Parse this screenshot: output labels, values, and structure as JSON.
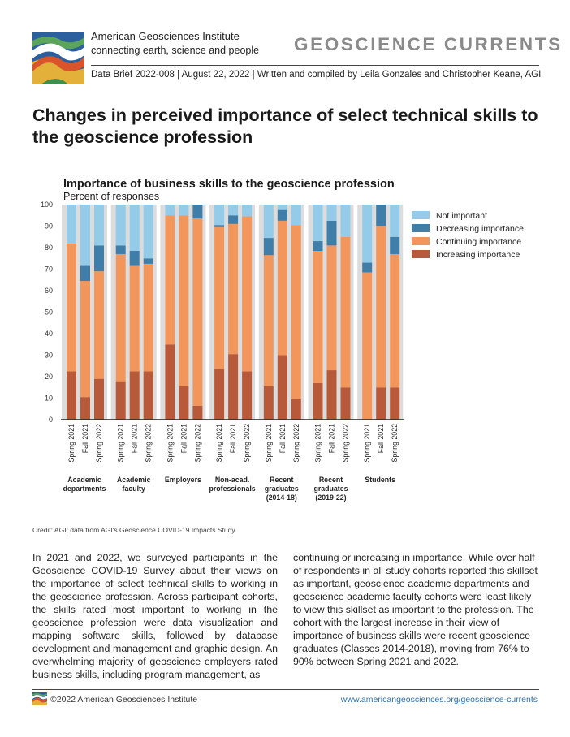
{
  "header": {
    "org_name": "American Geosciences Institute",
    "tagline": "connecting earth, science and people",
    "series_title": "GEOSCIENCE CURRENTS",
    "brief_line": "Data Brief 2022-008 | August 22, 2022 | Written and compiled by Leila Gonzales and Christopher Keane, AGI"
  },
  "page_title": "Changes in perceived importance of select technical skills to the geoscience profession",
  "colors": {
    "not_important": "#93cbe9",
    "decreasing": "#3f7ea8",
    "continuing": "#f3965c",
    "increasing": "#b8593a",
    "panel": "#dcdcdc"
  },
  "chart_data": {
    "type": "bar",
    "stacked": true,
    "title": "Importance of business skills to the geoscience profession",
    "subtitle": "Percent of responses",
    "ylim": [
      0,
      100
    ],
    "yticks": [
      0,
      10,
      20,
      30,
      40,
      50,
      60,
      70,
      80,
      90,
      100
    ],
    "legend": [
      "Not important",
      "Decreasing importance",
      "Continuing importance",
      "Increasing importance"
    ],
    "legend_position": "top-right",
    "groups": [
      {
        "label": [
          "Academic",
          "departments"
        ],
        "bars": [
          {
            "x": "Spring 2021",
            "increasing": 22.5,
            "continuing": 59.5,
            "decreasing": 0,
            "not_important": 18
          },
          {
            "x": "Fall 2021",
            "increasing": 10.5,
            "continuing": 54,
            "decreasing": 7,
            "not_important": 28.5
          },
          {
            "x": "Spring 2022",
            "increasing": 19,
            "continuing": 50,
            "decreasing": 12,
            "not_important": 19
          }
        ]
      },
      {
        "label": [
          "Academic",
          "faculty"
        ],
        "bars": [
          {
            "x": "Spring 2021",
            "increasing": 17.5,
            "continuing": 59.5,
            "decreasing": 4,
            "not_important": 19
          },
          {
            "x": "Fall 2021",
            "increasing": 22.5,
            "continuing": 49,
            "decreasing": 7,
            "not_important": 21.5
          },
          {
            "x": "Spring 2022",
            "increasing": 22.5,
            "continuing": 50,
            "decreasing": 2.5,
            "not_important": 25
          }
        ]
      },
      {
        "label": [
          "Employers"
        ],
        "bars": [
          {
            "x": "Spring 2021",
            "increasing": 35,
            "continuing": 60,
            "decreasing": 0,
            "not_important": 5
          },
          {
            "x": "Fall 2021",
            "increasing": 15.5,
            "continuing": 79.5,
            "decreasing": 0,
            "not_important": 5
          },
          {
            "x": "Spring 2022",
            "increasing": 6.5,
            "continuing": 87,
            "decreasing": 6.5,
            "not_important": 0
          }
        ]
      },
      {
        "label": [
          "Non-acad.",
          "professionals"
        ],
        "bars": [
          {
            "x": "Spring 2021",
            "increasing": 23.5,
            "continuing": 66,
            "decreasing": 1,
            "not_important": 9.5
          },
          {
            "x": "Fall 2021",
            "increasing": 30.5,
            "continuing": 60.5,
            "decreasing": 4,
            "not_important": 5
          },
          {
            "x": "Spring 2022",
            "increasing": 22.5,
            "continuing": 72,
            "decreasing": 0,
            "not_important": 5.5
          }
        ]
      },
      {
        "label": [
          "Recent",
          "graduates",
          "(2014-18)"
        ],
        "bars": [
          {
            "x": "Spring 2021",
            "increasing": 15.5,
            "continuing": 61,
            "decreasing": 8,
            "not_important": 15.5
          },
          {
            "x": "Fall 2021",
            "increasing": 30,
            "continuing": 62.5,
            "decreasing": 5,
            "not_important": 2.5
          },
          {
            "x": "Spring 2022",
            "increasing": 9.5,
            "continuing": 81,
            "decreasing": 0,
            "not_important": 9.5
          }
        ]
      },
      {
        "label": [
          "Recent",
          "graduates",
          "(2019-22)"
        ],
        "bars": [
          {
            "x": "Spring 2021",
            "increasing": 17,
            "continuing": 61.5,
            "decreasing": 4.5,
            "not_important": 17
          },
          {
            "x": "Fall 2021",
            "increasing": 23,
            "continuing": 58,
            "decreasing": 11.5,
            "not_important": 7.5
          },
          {
            "x": "Spring 2022",
            "increasing": 15,
            "continuing": 70,
            "decreasing": 0,
            "not_important": 15
          }
        ]
      },
      {
        "label": [
          "Students"
        ],
        "bars": [
          {
            "x": "Spring 2021",
            "increasing": 0,
            "continuing": 68.5,
            "decreasing": 4.5,
            "not_important": 27
          },
          {
            "x": "Fall 2021",
            "increasing": 15,
            "continuing": 75,
            "decreasing": 10,
            "not_important": 0
          },
          {
            "x": "Spring 2022",
            "increasing": 15,
            "continuing": 62,
            "decreasing": 8,
            "not_important": 15
          }
        ]
      }
    ]
  },
  "credit": "Credit: AGI; data from AGI's Geoscience COVID-19 Impacts Study",
  "body": {
    "left": "In 2021 and 2022, we surveyed participants in the Geoscience COVID-19 Survey about their views on the importance of select technical skills to working in the geoscience profession. Across participant cohorts, the skills rated most important to working in the geoscience profession were data visualization and mapping software skills, followed by database development and management and graphic design. An overwhelming majority of geoscience employers rated business skills, including program management, as",
    "right": "continuing or increasing in importance. While over half of respondents in all study cohorts reported this skillset as important, geoscience academic departments and geoscience academic faculty cohorts were least likely to view this skillset as important to the profession. The cohort with the largest increase in their view of importance of business skills were recent geoscience graduates (Classes 2014-2018), moving from 76% to 90% between Spring 2021 and 2022."
  },
  "footer": {
    "copyright": "©2022 American Geosciences Institute",
    "url": "www.americangeosciences.org/geoscience-currents"
  }
}
